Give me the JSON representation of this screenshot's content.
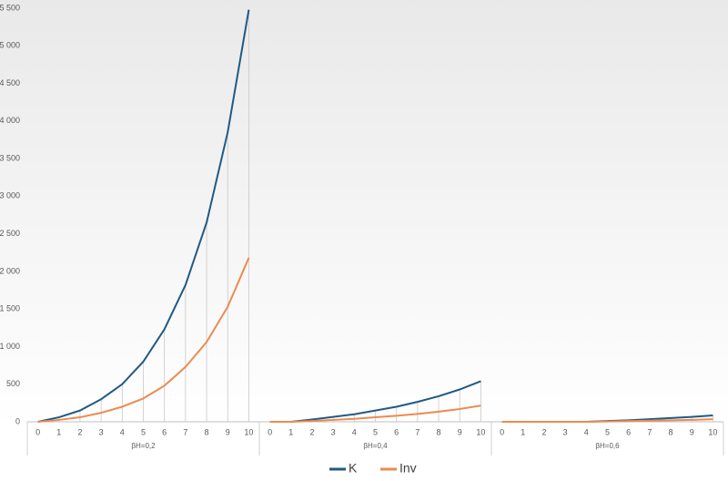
{
  "chart_data": {
    "type": "line",
    "categories": [
      "0",
      "1",
      "2",
      "3",
      "4",
      "5",
      "6",
      "7",
      "8",
      "9",
      "10",
      "0",
      "1",
      "2",
      "3",
      "4",
      "5",
      "6",
      "7",
      "8",
      "9",
      "10",
      "0",
      "1",
      "2",
      "3",
      "4",
      "5",
      "6",
      "7",
      "8",
      "9",
      "10"
    ],
    "groups": [
      "βH=0,2",
      "βH=0,4",
      "βH=0,6"
    ],
    "series": [
      {
        "name": "K",
        "color": "#1f5a85",
        "values": [
          0,
          60,
          150,
          300,
          500,
          800,
          1230,
          1820,
          2650,
          3850,
          5480,
          0,
          0,
          30,
          65,
          100,
          150,
          200,
          265,
          340,
          430,
          540,
          0,
          0,
          0,
          0,
          0,
          10,
          20,
          35,
          50,
          65,
          85
        ]
      },
      {
        "name": "Inv",
        "color": "#ed8a4f",
        "values": [
          0,
          25,
          60,
          120,
          200,
          310,
          480,
          730,
          1060,
          1530,
          2180,
          0,
          0,
          10,
          25,
          40,
          60,
          80,
          105,
          135,
          170,
          215,
          0,
          0,
          0,
          0,
          0,
          5,
          10,
          15,
          20,
          25,
          35
        ]
      }
    ],
    "ylim": [
      0,
      5500
    ],
    "yticks": [
      0,
      500,
      {
        "value": 1000,
        "label": "1 000"
      },
      {
        "value": 1500,
        "label": "1 500"
      },
      {
        "value": 2000,
        "label": "2 000"
      },
      {
        "value": 2500,
        "label": "2 500"
      },
      {
        "value": 3000,
        "label": "3 000"
      },
      {
        "value": 3500,
        "label": "3 500"
      },
      {
        "value": 4000,
        "label": "4 000"
      },
      {
        "value": 4500,
        "label": "4 500"
      },
      {
        "value": 5000,
        "label": "5 000"
      },
      {
        "value": 5500,
        "label": "5 500"
      }
    ],
    "drop_lines": true,
    "legend": "bottom"
  }
}
